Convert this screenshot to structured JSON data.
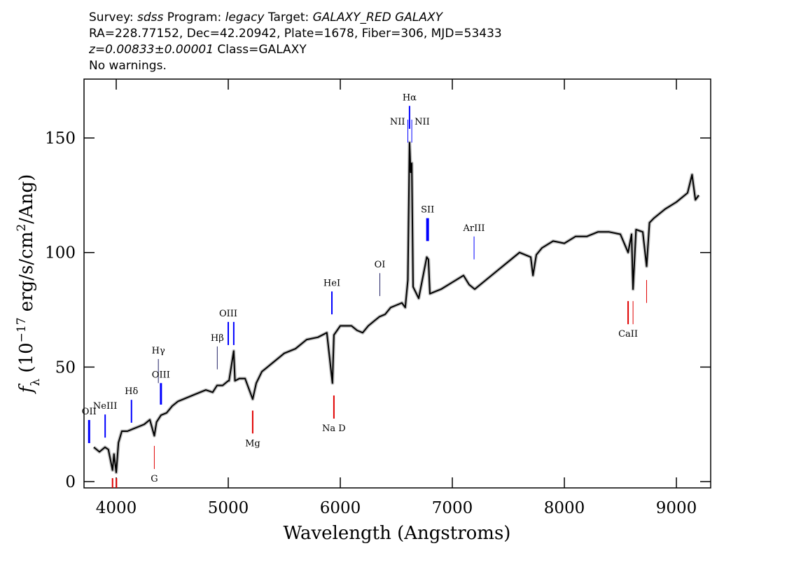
{
  "chart_data": {
    "type": "line",
    "title_lines": [
      [
        {
          "text": "Survey: "
        },
        {
          "text": "sdss",
          "italic": true
        },
        {
          "text": " Program: "
        },
        {
          "text": "legacy",
          "italic": true
        },
        {
          "text": " Target: "
        },
        {
          "text": "GALAXY_RED GALAXY",
          "italic": true
        }
      ],
      [
        {
          "text": "RA=228.77152, Dec=42.20942, Plate=1678, Fiber=306, MJD=53433"
        }
      ],
      [
        {
          "text": "z=0.00833±0.00001",
          "italic": true
        },
        {
          "text": " Class=GALAXY"
        }
      ],
      [
        {
          "text": "No warnings."
        }
      ]
    ],
    "xlabel": "Wavelength (Angstroms)",
    "ylabel_parts": [
      "f",
      "λ",
      " (10",
      "−17",
      " erg/s/cm",
      "2",
      "/Ang)"
    ],
    "xlim": [
      3712.5,
      9306
    ],
    "ylim": [
      -2.75,
      175.7
    ],
    "xticks": [
      4000,
      5000,
      6000,
      7000,
      8000,
      9000
    ],
    "yticks": [
      0,
      50,
      100,
      150
    ],
    "grid": false,
    "color": "#000000",
    "error_color": "#c0c0c0",
    "x": [
      3800,
      3850,
      3900,
      3930,
      3967,
      3980,
      4000,
      4020,
      4050,
      4100,
      4150,
      4200,
      4250,
      4300,
      4340,
      4360,
      4400,
      4450,
      4500,
      4550,
      4600,
      4700,
      4800,
      4861,
      4900,
      4950,
      5000,
      5007,
      5049,
      5060,
      5100,
      5150,
      5218,
      5250,
      5300,
      5350,
      5400,
      5500,
      5600,
      5700,
      5800,
      5880,
      5930,
      5943,
      6000,
      6100,
      6150,
      6200,
      6250,
      6300,
      6350,
      6400,
      6450,
      6500,
      6550,
      6580,
      6603,
      6618,
      6628,
      6638,
      6650,
      6700,
      6772,
      6787,
      6800,
      6900,
      7000,
      7100,
      7150,
      7200,
      7300,
      7400,
      7500,
      7600,
      7700,
      7720,
      7750,
      7800,
      7900,
      8000,
      8100,
      8200,
      8300,
      8400,
      8500,
      8569,
      8600,
      8613,
      8640,
      8700,
      8734,
      8760,
      8800,
      8900,
      9000,
      9100,
      9140,
      9170,
      9200
    ],
    "values": [
      15,
      13,
      15,
      14,
      5,
      12,
      4,
      17,
      22,
      22,
      23,
      24,
      25,
      27,
      20,
      26,
      29,
      30,
      33,
      35,
      36,
      38,
      40,
      39,
      42,
      42,
      44,
      44,
      57,
      44,
      45,
      45,
      36,
      43,
      48,
      50,
      52,
      56,
      58,
      62,
      63,
      65,
      43,
      64,
      68,
      68,
      66,
      65,
      68,
      70,
      72,
      73,
      76,
      77,
      78,
      76,
      88,
      148,
      135,
      139,
      85,
      80,
      98,
      97,
      82,
      84,
      87,
      90,
      86,
      84,
      88,
      92,
      96,
      100,
      98,
      90,
      99,
      102,
      105,
      104,
      107,
      107,
      109,
      109,
      108,
      100,
      108,
      84,
      110,
      109,
      94,
      113,
      115,
      119,
      122,
      126,
      134,
      123,
      125
    ],
    "lines": [
      {
        "label": "OII",
        "x": 3758,
        "y": [
          16.8,
          26.9
        ],
        "color": "#0000ff",
        "width": 3,
        "label_side": "above"
      },
      {
        "label": "NeIII",
        "x": 3901,
        "y": [
          19.2,
          29.3
        ],
        "color": "#0000ff",
        "width": 2,
        "label_side": "above"
      },
      {
        "label": "Hδ",
        "x": 4136,
        "y": [
          25.7,
          35.7
        ],
        "color": "#0000ff",
        "width": 2,
        "label_side": "above"
      },
      {
        "label": "Hγ",
        "x": 4376,
        "y": [
          43.0,
          53.5
        ],
        "color": "#222266",
        "width": 1,
        "label_side": "above"
      },
      {
        "label": "OIII",
        "x": 4399,
        "y": [
          33.6,
          43.0
        ],
        "color": "#0000ff",
        "width": 3,
        "label_side": "above"
      },
      {
        "label": "Hβ",
        "x": 4902,
        "y": [
          49.0,
          59.0
        ],
        "color": "#222266",
        "width": 1,
        "label_side": "above"
      },
      {
        "label": "OIII",
        "x": 5000,
        "y": [
          59.6,
          69.7
        ],
        "color": "#0000ff",
        "width": 2,
        "label_side": "above"
      },
      {
        "label": null,
        "x": 5049,
        "y": [
          59.6,
          69.7
        ],
        "color": "#0000ff",
        "width": 2,
        "label_side": "above"
      },
      {
        "label": "HeI",
        "x": 5925,
        "y": [
          73.0,
          83.0
        ],
        "color": "#0000ff",
        "width": 2,
        "label_side": "above"
      },
      {
        "label": "OI",
        "x": 6353,
        "y": [
          81.0,
          91.0
        ],
        "color": "#222266",
        "width": 1,
        "label_side": "above"
      },
      {
        "label": "NII",
        "x": 6603,
        "y": [
          148.0,
          158.0
        ],
        "color": "#0000ff",
        "width": 1,
        "label_side": "left"
      },
      {
        "label": "Hα",
        "x": 6618,
        "y": [
          154.0,
          164.0
        ],
        "color": "#0000ff",
        "width": 2,
        "label_side": "above"
      },
      {
        "label": "NII",
        "x": 6638,
        "y": [
          148.0,
          158.0
        ],
        "color": "#0000ff",
        "width": 1,
        "label_side": "right"
      },
      {
        "label": "SII",
        "x": 6779,
        "y": [
          105.0,
          115.0
        ],
        "color": "#0000ff",
        "width": 4,
        "label_side": "above"
      },
      {
        "label": "ArIII",
        "x": 7194,
        "y": [
          97.0,
          107.0
        ],
        "color": "#0000ff",
        "width": 1,
        "label_side": "above"
      },
      {
        "label": null,
        "x": 3967,
        "y": [
          -2.75,
          1.5
        ],
        "color": "#e00000",
        "width": 2,
        "label_side": "below"
      },
      {
        "label": null,
        "x": 4002,
        "y": [
          -2.75,
          1.5
        ],
        "color": "#e00000",
        "width": 2,
        "label_side": "below"
      },
      {
        "label": "G",
        "x": 4340,
        "y": [
          5.5,
          15.6
        ],
        "color": "#e00000",
        "width": 1,
        "label_side": "below"
      },
      {
        "label": "Mg",
        "x": 5218,
        "y": [
          21.0,
          31.0
        ],
        "color": "#e00000",
        "width": 2,
        "label_side": "below"
      },
      {
        "label": "Na D",
        "x": 5943,
        "y": [
          27.5,
          37.6
        ],
        "color": "#e00000",
        "width": 2,
        "label_side": "below"
      },
      {
        "label": "CaII",
        "x": 8569,
        "y": [
          68.7,
          78.8
        ],
        "color": "#e00000",
        "width": 2,
        "label_side": "below"
      },
      {
        "label": null,
        "x": 8613,
        "y": [
          68.7,
          78.8
        ],
        "color": "#e00000",
        "width": 1,
        "label_side": "below"
      },
      {
        "label": null,
        "x": 8734,
        "y": [
          78.0,
          88.0
        ],
        "color": "#e00000",
        "width": 1,
        "label_side": "below"
      }
    ]
  }
}
